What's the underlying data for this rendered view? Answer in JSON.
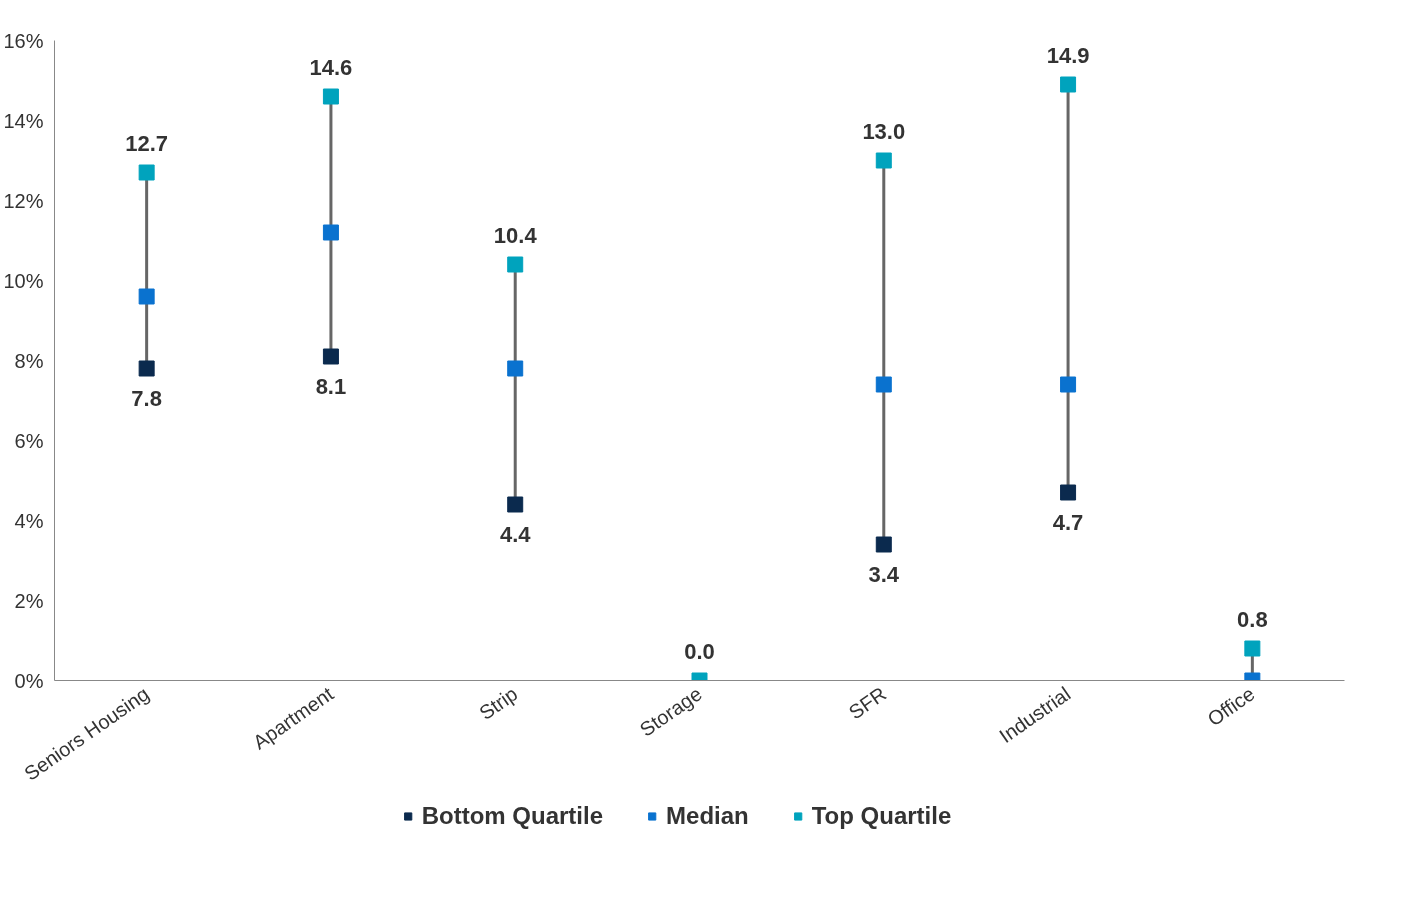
{
  "chart_data": {
    "type": "scatter",
    "categories": [
      "Seniors Housing",
      "Apartment",
      "Strip",
      "Storage",
      "SFR",
      "Industrial",
      "Office"
    ],
    "series": [
      {
        "name": "Bottom Quartile",
        "color": "#0b2a4e",
        "values": [
          7.8,
          8.1,
          4.4,
          null,
          3.4,
          4.7,
          null
        ],
        "value_labels": [
          "7.8",
          "8.1",
          "4.4",
          null,
          "3.4",
          "4.7",
          null
        ]
      },
      {
        "name": "Median",
        "color": "#0a72cf",
        "values": [
          9.6,
          11.2,
          7.8,
          null,
          7.4,
          7.4,
          0
        ]
      },
      {
        "name": "Top Quartile",
        "color": "#00a3bd",
        "values": [
          12.7,
          14.6,
          10.4,
          0,
          13.0,
          14.9,
          0.8
        ],
        "value_labels": [
          "12.7",
          "14.6",
          "10.4",
          "0.0",
          "13.0",
          "14.9",
          "0.8"
        ]
      }
    ],
    "ylim": [
      0,
      16
    ],
    "yticks": [
      {
        "value": 0,
        "label": "0%"
      },
      {
        "value": 2,
        "label": "2%"
      },
      {
        "value": 4,
        "label": "4%"
      },
      {
        "value": 6,
        "label": "6%"
      },
      {
        "value": 8,
        "label": "8%"
      },
      {
        "value": 10,
        "label": "10%"
      },
      {
        "value": 12,
        "label": "12%"
      },
      {
        "value": 14,
        "label": "14%"
      },
      {
        "value": 16,
        "label": "16%"
      }
    ],
    "grid": false,
    "legend": "bottom",
    "marker": "square"
  }
}
